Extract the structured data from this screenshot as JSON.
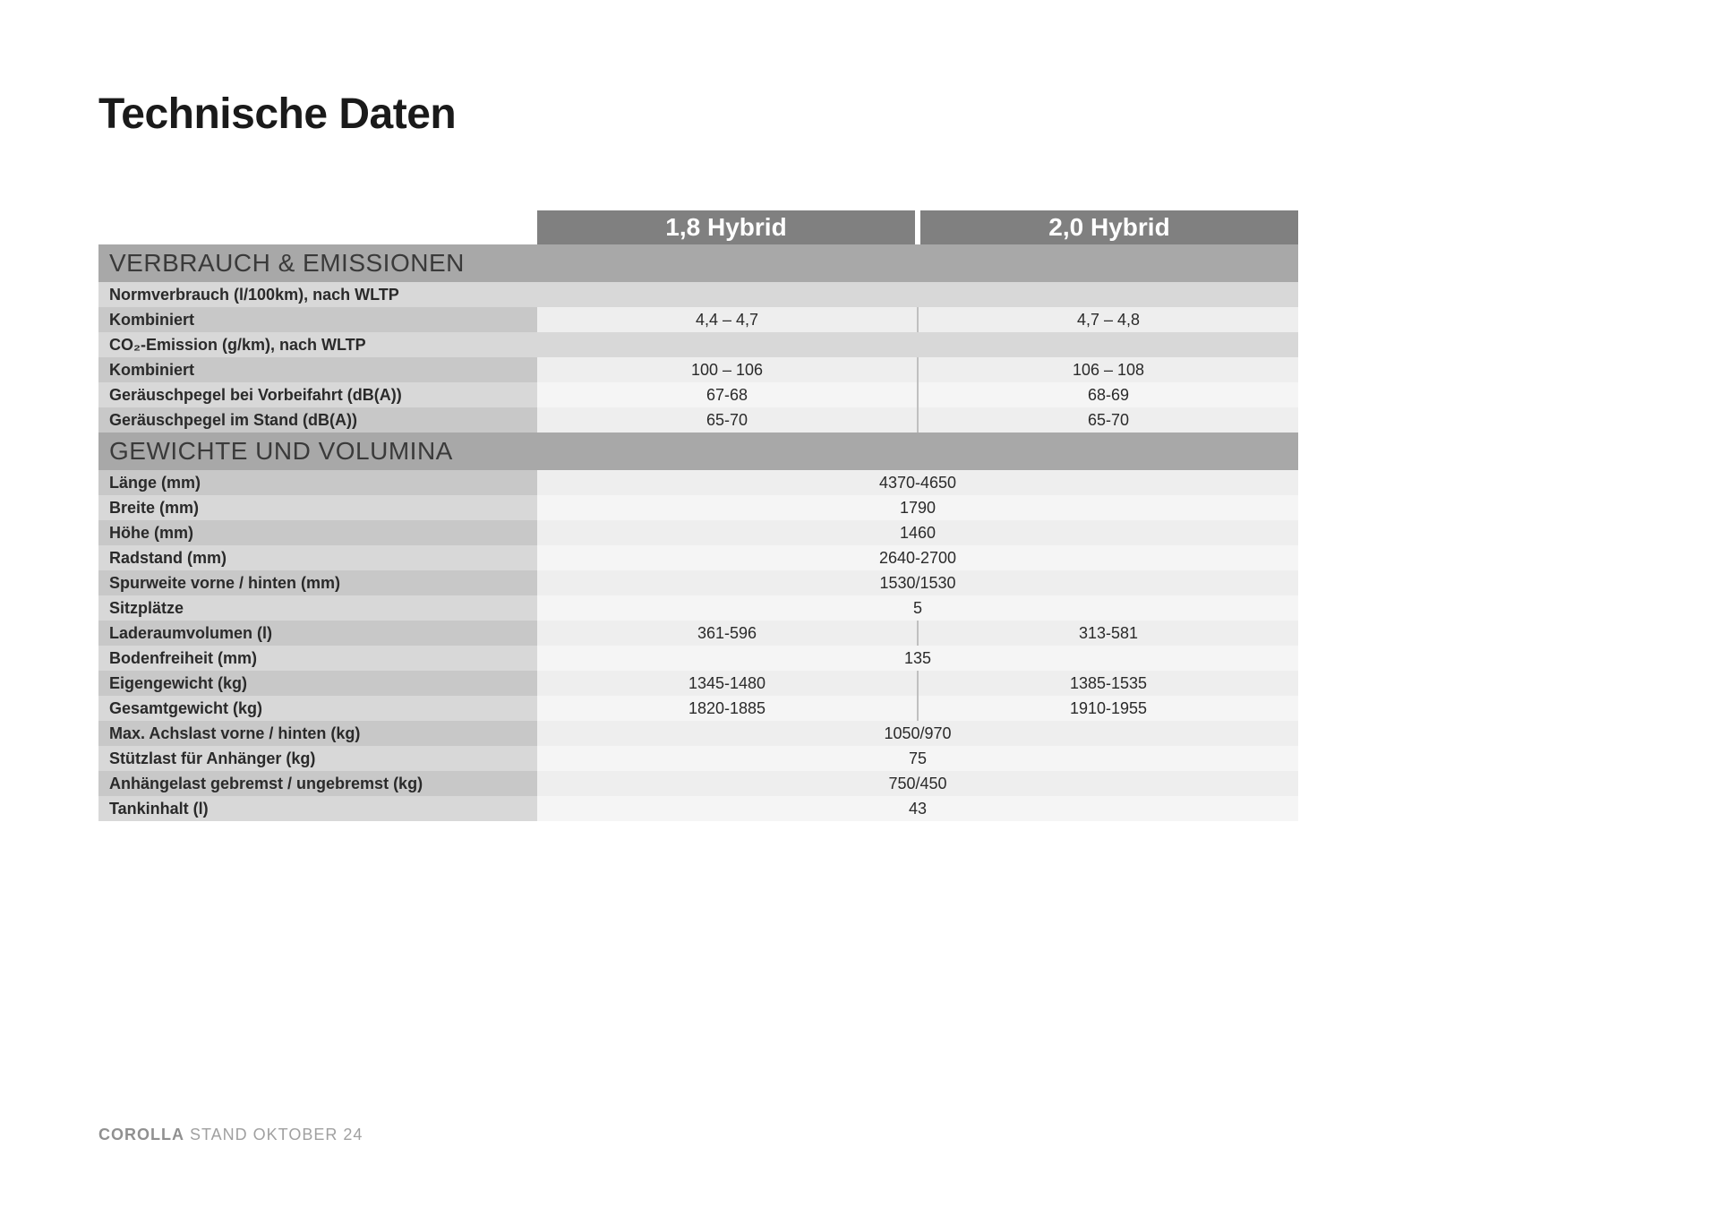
{
  "title": "Technische Daten",
  "columns": {
    "col1": "1,8 Hybrid",
    "col2": "2,0 Hybrid"
  },
  "sections": [
    {
      "name": "VERBRAUCH & EMISSIONEN",
      "rows": [
        {
          "type": "subheader",
          "label": "Normverbrauch (l/100km), nach WLTP"
        },
        {
          "type": "data",
          "label": "Kombiniert",
          "v1": "4,4 – 4,7",
          "v2": "4,7 – 4,8"
        },
        {
          "type": "subheader",
          "label": "CO₂-Emission (g/km), nach WLTP"
        },
        {
          "type": "data",
          "label": "Kombiniert",
          "v1": "100 – 106",
          "v2": "106 – 108"
        },
        {
          "type": "data",
          "label": "Geräuschpegel bei Vorbeifahrt (dB(A))",
          "v1": "67-68",
          "v2": "68-69"
        },
        {
          "type": "data",
          "label": "Geräuschpegel im Stand (dB(A))",
          "v1": "65-70",
          "v2": "65-70"
        }
      ]
    },
    {
      "name": "GEWICHTE UND VOLUMINA",
      "rows": [
        {
          "type": "data",
          "label": "Länge (mm)",
          "span": "4370-4650"
        },
        {
          "type": "data",
          "label": "Breite (mm)",
          "span": "1790"
        },
        {
          "type": "data",
          "label": "Höhe (mm)",
          "span": "1460"
        },
        {
          "type": "data",
          "label": "Radstand (mm)",
          "span": "2640-2700"
        },
        {
          "type": "data",
          "label": "Spurweite vorne / hinten (mm)",
          "span": "1530/1530"
        },
        {
          "type": "data",
          "label": "Sitzplätze",
          "span": "5"
        },
        {
          "type": "data",
          "label": "Laderaumvolumen (l)",
          "v1": "361-596",
          "v2": "313-581"
        },
        {
          "type": "data",
          "label": "Bodenfreiheit (mm)",
          "span": "135"
        },
        {
          "type": "data",
          "label": "Eigengewicht (kg)",
          "v1": "1345-1480",
          "v2": "1385-1535"
        },
        {
          "type": "data",
          "label": "Gesamtgewicht (kg)",
          "v1": "1820-1885",
          "v2": "1910-1955"
        },
        {
          "type": "data",
          "label": "Max. Achslast vorne / hinten (kg)",
          "span": "1050/970"
        },
        {
          "type": "data",
          "label": "Stützlast für Anhänger (kg)",
          "span": "75"
        },
        {
          "type": "data",
          "label": "Anhängelast gebremst / ungebremst (kg)",
          "span": "750/450"
        },
        {
          "type": "data",
          "label": "Tankinhalt (l)",
          "span": "43"
        }
      ]
    }
  ],
  "footer": {
    "bold": "COROLLA",
    "rest": " STAND OKTOBER 24"
  },
  "colors": {
    "header_bg": "#808080",
    "section_bg": "#a8a8a8",
    "label_bg_a": "#c8c8c8",
    "label_bg_b": "#d8d8d8",
    "val_bg_a": "#eeeeee",
    "val_bg_b": "#f5f5f5",
    "text_dark": "#2a2a2a"
  }
}
